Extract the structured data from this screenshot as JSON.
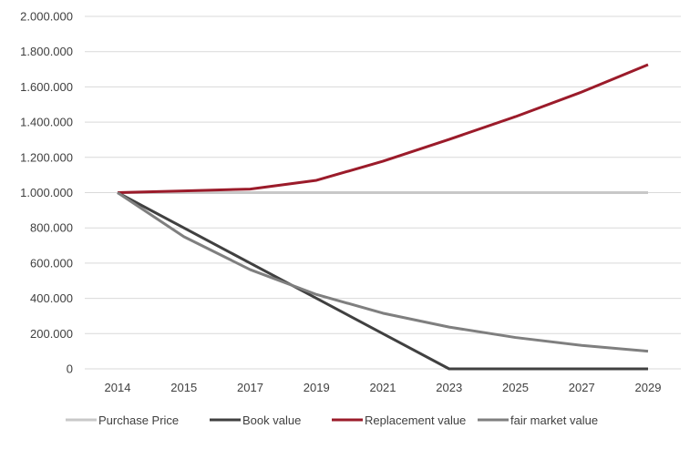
{
  "chart_data": {
    "type": "line",
    "title": "",
    "xlabel": "",
    "ylabel": "",
    "categories": [
      "2014",
      "2015",
      "2017",
      "2019",
      "2021",
      "2023",
      "2025",
      "2027",
      "2029"
    ],
    "ylim": [
      0,
      2000000
    ],
    "yticks": [
      0,
      200000,
      400000,
      600000,
      800000,
      1000000,
      1200000,
      1400000,
      1600000,
      1800000,
      2000000
    ],
    "ytick_labels": [
      "0",
      "200.000",
      "400.000",
      "600.000",
      "800.000",
      "1.000.000",
      "1.200.000",
      "1.400.000",
      "1.600.000",
      "1.800.000",
      "2.000.000"
    ],
    "grid": true,
    "legend_position": "bottom",
    "series": [
      {
        "name": "Purchase Price",
        "color": "#c8c8c8",
        "values": [
          1000000,
          1000000,
          1000000,
          1000000,
          1000000,
          1000000,
          1000000,
          1000000,
          1000000
        ]
      },
      {
        "name": "Book value",
        "color": "#404040",
        "values": [
          1000000,
          800000,
          600000,
          400000,
          200000,
          0,
          0,
          0,
          0
        ]
      },
      {
        "name": "Replacement value",
        "color": "#9b1b2a",
        "values": [
          1000000,
          1010000,
          1020000,
          1070000,
          1178000,
          1302000,
          1431000,
          1571000,
          1726000
        ]
      },
      {
        "name": "fair market value",
        "color": "#7f7f7f",
        "values": [
          1000000,
          750000,
          563000,
          422000,
          316000,
          237000,
          178000,
          133000,
          100000
        ]
      }
    ]
  }
}
